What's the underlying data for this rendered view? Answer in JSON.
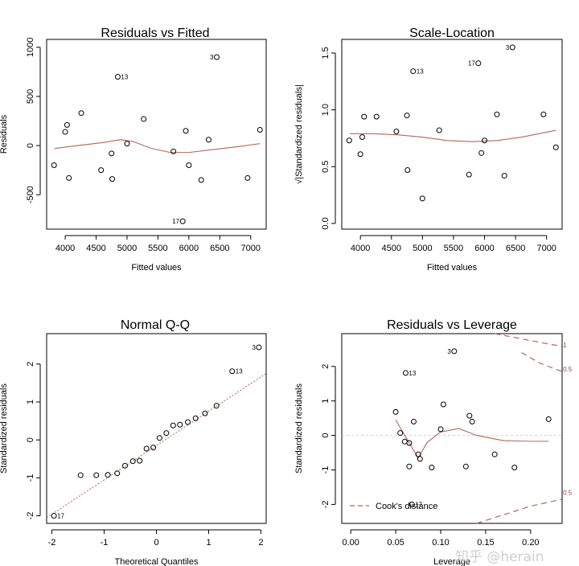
{
  "watermark": "知乎 @herain",
  "chart_data": [
    {
      "type": "scatter",
      "id": "residuals-vs-fitted",
      "title": "Residuals vs Fitted",
      "xlabel": "Fitted values",
      "ylabel": "Residuals",
      "xlim": [
        3700,
        7250
      ],
      "ylim": [
        -850,
        1080
      ],
      "xticks": [
        4000,
        4500,
        5000,
        5500,
        6000,
        6500,
        7000
      ],
      "yticks": [
        -500,
        0,
        500,
        1000
      ],
      "points": [
        {
          "x": 3820,
          "y": -200
        },
        {
          "x": 4000,
          "y": 140
        },
        {
          "x": 4030,
          "y": 210
        },
        {
          "x": 4060,
          "y": -330
        },
        {
          "x": 4260,
          "y": 330
        },
        {
          "x": 4580,
          "y": -250
        },
        {
          "x": 4750,
          "y": -80
        },
        {
          "x": 4760,
          "y": -340
        },
        {
          "x": 4850,
          "y": 700,
          "label": "13"
        },
        {
          "x": 5000,
          "y": 20
        },
        {
          "x": 5270,
          "y": 270
        },
        {
          "x": 5750,
          "y": -60
        },
        {
          "x": 5900,
          "y": -770,
          "label": "17"
        },
        {
          "x": 5950,
          "y": 150
        },
        {
          "x": 6000,
          "y": -200
        },
        {
          "x": 6200,
          "y": -350
        },
        {
          "x": 6320,
          "y": 60
        },
        {
          "x": 6450,
          "y": 900,
          "label": "3"
        },
        {
          "x": 6950,
          "y": -330
        },
        {
          "x": 7150,
          "y": 160
        }
      ],
      "smooth": {
        "x": [
          3830,
          4200,
          4600,
          4900,
          5100,
          5400,
          5700,
          6000,
          6400,
          6800,
          7150
        ],
        "y": [
          -30,
          0,
          30,
          60,
          40,
          -30,
          -70,
          -70,
          -40,
          -10,
          20
        ]
      }
    },
    {
      "type": "scatter",
      "id": "scale-location",
      "title": "Scale-Location",
      "xlabel": "Fitted values",
      "ylabel": "√|Standardized residuals|",
      "xlim": [
        3700,
        7250
      ],
      "ylim": [
        -0.05,
        1.62
      ],
      "xticks": [
        4000,
        4500,
        5000,
        5500,
        6000,
        6500,
        7000
      ],
      "yticks": [
        0.0,
        0.5,
        1.0,
        1.5
      ],
      "ytick_labels": [
        "0.0",
        "0.5",
        "1.0",
        "1.5"
      ],
      "points": [
        {
          "x": 3820,
          "y": 0.73
        },
        {
          "x": 4000,
          "y": 0.61
        },
        {
          "x": 4030,
          "y": 0.76
        },
        {
          "x": 4060,
          "y": 0.94
        },
        {
          "x": 4260,
          "y": 0.94
        },
        {
          "x": 4580,
          "y": 0.81
        },
        {
          "x": 4750,
          "y": 0.95
        },
        {
          "x": 4760,
          "y": 0.47
        },
        {
          "x": 4850,
          "y": 1.34,
          "label": "13"
        },
        {
          "x": 5000,
          "y": 0.22
        },
        {
          "x": 5270,
          "y": 0.82
        },
        {
          "x": 5750,
          "y": 0.43
        },
        {
          "x": 5900,
          "y": 1.41,
          "label": "17"
        },
        {
          "x": 5950,
          "y": 0.62
        },
        {
          "x": 6000,
          "y": 0.73
        },
        {
          "x": 6200,
          "y": 0.96
        },
        {
          "x": 6320,
          "y": 0.42
        },
        {
          "x": 6450,
          "y": 1.55,
          "label": "3"
        },
        {
          "x": 6950,
          "y": 0.96
        },
        {
          "x": 7150,
          "y": 0.67
        }
      ],
      "smooth": {
        "x": [
          3830,
          4200,
          4600,
          5000,
          5400,
          5800,
          6200,
          6600,
          7150
        ],
        "y": [
          0.79,
          0.79,
          0.78,
          0.76,
          0.73,
          0.72,
          0.73,
          0.76,
          0.82
        ]
      }
    },
    {
      "type": "scatter",
      "id": "normal-qq",
      "title": "Normal Q-Q",
      "xlabel": "Theoretical Quantiles",
      "ylabel": "Standardized residuals",
      "xlim": [
        -2.1,
        2.1
      ],
      "ylim": [
        -2.2,
        2.8
      ],
      "xticks": [
        -2,
        -1,
        0,
        1,
        2
      ],
      "yticks": [
        -2,
        -1,
        0,
        1,
        2
      ],
      "points": [
        {
          "x": -1.96,
          "y": -2.0,
          "label": "17"
        },
        {
          "x": -1.45,
          "y": -0.93
        },
        {
          "x": -1.15,
          "y": -0.93
        },
        {
          "x": -0.93,
          "y": -0.92
        },
        {
          "x": -0.75,
          "y": -0.88
        },
        {
          "x": -0.6,
          "y": -0.68
        },
        {
          "x": -0.45,
          "y": -0.56
        },
        {
          "x": -0.32,
          "y": -0.55
        },
        {
          "x": -0.19,
          "y": -0.23
        },
        {
          "x": -0.06,
          "y": -0.2
        },
        {
          "x": 0.06,
          "y": 0.05
        },
        {
          "x": 0.19,
          "y": 0.18
        },
        {
          "x": 0.32,
          "y": 0.38
        },
        {
          "x": 0.45,
          "y": 0.4
        },
        {
          "x": 0.6,
          "y": 0.47
        },
        {
          "x": 0.75,
          "y": 0.57
        },
        {
          "x": 0.93,
          "y": 0.7
        },
        {
          "x": 1.15,
          "y": 0.9
        },
        {
          "x": 1.45,
          "y": 1.81,
          "label": "13"
        },
        {
          "x": 1.96,
          "y": 2.44,
          "label": "3"
        }
      ],
      "refline": {
        "x": [
          -2.1,
          2.1
        ],
        "y": [
          -2.05,
          1.75
        ]
      }
    },
    {
      "type": "scatter",
      "id": "residuals-vs-leverage",
      "title": "Residuals vs Leverage",
      "xlabel": "Leverage",
      "ylabel": "Standardized residuals",
      "xlim": [
        -0.01,
        0.235
      ],
      "ylim": [
        -2.55,
        2.95
      ],
      "xticks": [
        0.0,
        0.05,
        0.1,
        0.15,
        0.2
      ],
      "xtick_labels": [
        "0.00",
        "0.05",
        "0.10",
        "0.15",
        "0.20"
      ],
      "yticks": [
        -2,
        -1,
        0,
        1,
        2
      ],
      "points": [
        {
          "x": 0.05,
          "y": 0.68
        },
        {
          "x": 0.055,
          "y": 0.07
        },
        {
          "x": 0.06,
          "y": -0.18
        },
        {
          "x": 0.061,
          "y": 1.81,
          "label": "13"
        },
        {
          "x": 0.065,
          "y": -0.22
        },
        {
          "x": 0.065,
          "y": -0.9
        },
        {
          "x": 0.068,
          "y": -2.0,
          "label": "17"
        },
        {
          "x": 0.07,
          "y": 0.4
        },
        {
          "x": 0.075,
          "y": -0.55
        },
        {
          "x": 0.077,
          "y": -0.68
        },
        {
          "x": 0.09,
          "y": -0.93
        },
        {
          "x": 0.1,
          "y": 0.18
        },
        {
          "x": 0.103,
          "y": 0.9
        },
        {
          "x": 0.115,
          "y": 2.44,
          "label": "3"
        },
        {
          "x": 0.128,
          "y": -0.9
        },
        {
          "x": 0.132,
          "y": 0.57
        },
        {
          "x": 0.135,
          "y": 0.4
        },
        {
          "x": 0.16,
          "y": -0.55
        },
        {
          "x": 0.182,
          "y": -0.93
        },
        {
          "x": 0.22,
          "y": 0.47
        }
      ],
      "smooth": {
        "x": [
          0.05,
          0.06,
          0.068,
          0.075,
          0.085,
          0.1,
          0.12,
          0.14,
          0.17,
          0.2,
          0.22
        ],
        "y": [
          0.45,
          0.0,
          -0.35,
          -0.65,
          -0.2,
          0.1,
          0.2,
          0.0,
          -0.15,
          -0.17,
          -0.17
        ]
      },
      "cook_upper": {
        "x": [
          0.16,
          0.19,
          0.22,
          0.235
        ],
        "y": [
          2.95,
          2.8,
          2.65,
          2.58
        ]
      },
      "cook_upper2": {
        "x": [
          0.19,
          0.21,
          0.235
        ],
        "y": [
          2.4,
          2.1,
          1.85
        ]
      },
      "cook_lower": {
        "x": [
          0.14,
          0.17,
          0.2,
          0.235
        ],
        "y": [
          -2.55,
          -2.3,
          -2.05,
          -1.85
        ]
      },
      "cook_labels": [
        {
          "text": "1",
          "x": 0.236,
          "y": 2.55
        },
        {
          "text": "0.5",
          "x": 0.236,
          "y": 1.85
        },
        {
          "text": "0.5",
          "x": 0.236,
          "y": -1.72
        }
      ],
      "legend": "Cook's distance"
    }
  ]
}
